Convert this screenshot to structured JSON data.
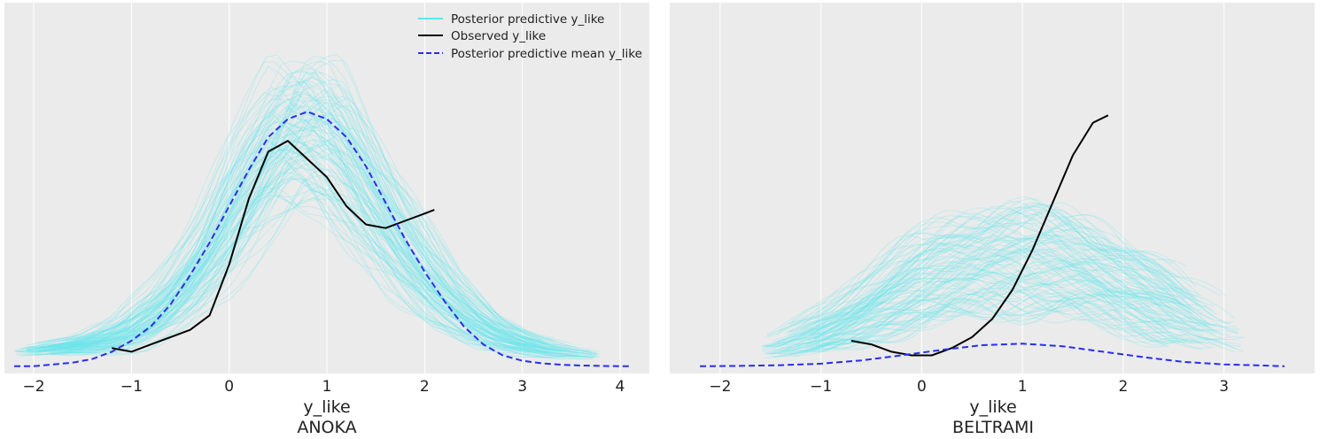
{
  "chart_data": [
    {
      "type": "line",
      "xlabel": "y_like",
      "title": "ANOKA",
      "xlim": [
        -2.3,
        4.3
      ],
      "ylim": [
        -0.02,
        1.0
      ],
      "xticks": [
        -2,
        -1,
        0,
        1,
        2,
        3,
        4
      ],
      "xtick_labels": [
        "−2",
        "−1",
        "0",
        "1",
        "2",
        "3",
        "4"
      ],
      "grid": "vertical",
      "legend_position": "top-right",
      "series": [
        {
          "name": "Posterior predictive y_like",
          "kind": "posterior_predictive_band",
          "color": "#63e5ee",
          "x": [
            -2.2,
            -1.8,
            -1.4,
            -1.0,
            -0.6,
            -0.2,
            0.2,
            0.6,
            1.0,
            1.4,
            1.8,
            2.2,
            2.6,
            3.0,
            3.4,
            3.8
          ],
          "center": [
            0.04,
            0.05,
            0.06,
            0.09,
            0.17,
            0.3,
            0.49,
            0.64,
            0.62,
            0.47,
            0.31,
            0.18,
            0.1,
            0.06,
            0.04,
            0.03
          ],
          "spread": [
            0.01,
            0.02,
            0.03,
            0.05,
            0.08,
            0.12,
            0.17,
            0.22,
            0.22,
            0.18,
            0.13,
            0.08,
            0.05,
            0.03,
            0.02,
            0.01
          ]
        },
        {
          "name": "Observed y_like",
          "kind": "observed",
          "color": "#000000",
          "x": [
            -1.2,
            -1.0,
            -0.8,
            -0.6,
            -0.4,
            -0.2,
            0.0,
            0.2,
            0.4,
            0.6,
            0.8,
            1.0,
            1.2,
            1.4,
            1.6,
            1.8,
            2.0,
            2.1
          ],
          "y": [
            0.05,
            0.04,
            0.06,
            0.08,
            0.1,
            0.14,
            0.28,
            0.46,
            0.59,
            0.62,
            0.57,
            0.52,
            0.44,
            0.39,
            0.38,
            0.4,
            0.42,
            0.43
          ]
        },
        {
          "name": "Posterior predictive mean y_like",
          "kind": "mean",
          "color": "#2a2eec",
          "x": [
            -2.2,
            -2.0,
            -1.8,
            -1.6,
            -1.4,
            -1.2,
            -1.0,
            -0.8,
            -0.6,
            -0.4,
            -0.2,
            0.0,
            0.2,
            0.4,
            0.6,
            0.8,
            1.0,
            1.2,
            1.4,
            1.6,
            1.8,
            2.0,
            2.2,
            2.4,
            2.6,
            2.8,
            3.0,
            3.2,
            3.4,
            3.6,
            3.8,
            4.0,
            4.1
          ],
          "y": [
            0.0,
            0.0,
            0.005,
            0.01,
            0.02,
            0.04,
            0.07,
            0.11,
            0.17,
            0.25,
            0.34,
            0.44,
            0.54,
            0.63,
            0.68,
            0.7,
            0.68,
            0.63,
            0.55,
            0.45,
            0.35,
            0.26,
            0.18,
            0.11,
            0.06,
            0.03,
            0.015,
            0.008,
            0.004,
            0.002,
            0.001,
            0.0,
            0.0
          ]
        }
      ]
    },
    {
      "type": "line",
      "xlabel": "y_like",
      "title": "BELTRAMI",
      "xlim": [
        -2.5,
        3.9
      ],
      "ylim": [
        -0.02,
        1.0
      ],
      "xticks": [
        -2,
        -1,
        0,
        1,
        2,
        3
      ],
      "xtick_labels": [
        "−2",
        "−1",
        "0",
        "1",
        "2",
        "3"
      ],
      "grid": "vertical",
      "series": [
        {
          "name": "Posterior predictive y_like",
          "kind": "posterior_predictive_band",
          "color": "#63e5ee",
          "x": [
            -1.6,
            -1.2,
            -0.8,
            -0.4,
            0.0,
            0.4,
            0.8,
            1.2,
            1.6,
            2.0,
            2.4,
            2.8,
            3.2
          ],
          "center": [
            0.04,
            0.07,
            0.11,
            0.17,
            0.23,
            0.27,
            0.29,
            0.29,
            0.27,
            0.22,
            0.17,
            0.12,
            0.08
          ],
          "spread": [
            0.02,
            0.04,
            0.07,
            0.1,
            0.13,
            0.15,
            0.16,
            0.16,
            0.15,
            0.13,
            0.11,
            0.08,
            0.05
          ]
        },
        {
          "name": "Observed y_like",
          "kind": "observed",
          "color": "#000000",
          "x": [
            -0.7,
            -0.5,
            -0.3,
            -0.1,
            0.1,
            0.3,
            0.5,
            0.7,
            0.9,
            1.1,
            1.3,
            1.5,
            1.7,
            1.85
          ],
          "y": [
            0.07,
            0.06,
            0.04,
            0.03,
            0.03,
            0.05,
            0.08,
            0.13,
            0.21,
            0.32,
            0.45,
            0.58,
            0.67,
            0.69
          ]
        },
        {
          "name": "Posterior predictive mean y_like",
          "kind": "mean",
          "color": "#2a2eec",
          "x": [
            -2.2,
            -1.8,
            -1.4,
            -1.0,
            -0.6,
            -0.2,
            0.2,
            0.6,
            1.0,
            1.4,
            1.8,
            2.2,
            2.6,
            3.0,
            3.4,
            3.6
          ],
          "y": [
            0.0,
            0.001,
            0.003,
            0.007,
            0.016,
            0.03,
            0.045,
            0.058,
            0.062,
            0.055,
            0.04,
            0.025,
            0.012,
            0.005,
            0.002,
            0.0
          ]
        }
      ]
    }
  ],
  "legend": {
    "items": [
      {
        "label": "Posterior predictive y_like",
        "style": "solid",
        "color": "#63e5ee"
      },
      {
        "label": "Observed y_like",
        "style": "solid",
        "color": "#000000"
      },
      {
        "label": "Posterior predictive mean y_like",
        "style": "dashed",
        "color": "#2a2eec"
      }
    ]
  },
  "colors": {
    "axes_background": "#ebebeb",
    "grid": "#ffffff",
    "text": "#222222"
  }
}
